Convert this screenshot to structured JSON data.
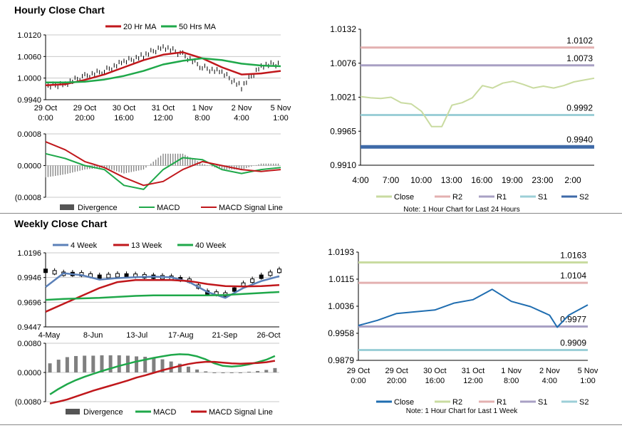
{
  "sections": {
    "hourly_title": "Hourly Close Chart",
    "weekly_title": "Weekly Close Chart"
  },
  "colors": {
    "ma_short": "#c0171b",
    "ma_long": "#1fa84a",
    "ma_4wk": "#5b80b8",
    "divergence": "#808080",
    "close_pivot": "#c9dba0",
    "r2": "#e3b0b0",
    "r1": "#a8a0c4",
    "s1": "#9ccfd7",
    "s2": "#3e6aa8",
    "close_weekly_pivot": "#1f6db0",
    "grid": "#c8c8c8"
  },
  "chart_data": [
    {
      "id": "hourly_price",
      "type": "line",
      "title": "",
      "legend": [
        "20 Hr MA",
        "50 Hrs MA"
      ],
      "y_ticks": [
        "1.0120",
        "1.0060",
        "1.0000",
        "0.9940"
      ],
      "ylim": [
        0.994,
        1.012
      ],
      "x_tick_labels": [
        [
          "29 Oct",
          "0:00"
        ],
        [
          "29 Oct",
          "20:00"
        ],
        [
          "30 Oct",
          "16:00"
        ],
        [
          "31 Oct",
          "12:00"
        ],
        [
          "1 Nov",
          "8:00"
        ],
        [
          "2 Nov",
          "4:00"
        ],
        [
          "5 Nov",
          "1:00"
        ]
      ],
      "x": [
        0,
        0.5,
        1,
        1.5,
        2,
        2.5,
        3,
        3.5,
        4,
        4.5,
        5,
        5.5,
        6
      ],
      "series": [
        {
          "name": "Price",
          "values": [
            0.9975,
            0.9985,
            1.0005,
            1.002,
            1.0045,
            1.0062,
            1.0088,
            1.0065,
            1.003,
            1.0015,
            0.9975,
            1.0035,
            1.004
          ]
        },
        {
          "name": "20 Hr MA",
          "values": [
            0.998,
            0.9983,
            0.9995,
            1.001,
            1.003,
            1.005,
            1.0065,
            1.0072,
            1.0055,
            1.003,
            1.001,
            1.0013,
            1.002
          ]
        },
        {
          "name": "50 Hrs MA",
          "values": [
            0.9988,
            0.9988,
            0.999,
            0.9996,
            1.0006,
            1.002,
            1.0038,
            1.0048,
            1.0055,
            1.005,
            1.004,
            1.0035,
            1.0033
          ]
        }
      ]
    },
    {
      "id": "hourly_macd",
      "type": "line",
      "legend": [
        "Divergence",
        "MACD",
        "MACD Signal Line"
      ],
      "y_ticks": [
        "0.0008",
        "0.0000",
        "(0.0008"
      ],
      "ylim": [
        -0.0008,
        0.0008
      ],
      "x": [
        0,
        0.5,
        1,
        1.5,
        2,
        2.5,
        3,
        3.5,
        4,
        4.5,
        5,
        5.5,
        6
      ],
      "series": [
        {
          "name": "MACD",
          "values": [
            0.0003,
            0.00018,
            0.0,
            -0.0001,
            -0.0005,
            -0.0006,
            -0.0001,
            0.0002,
            0.00015,
            -0.0001,
            -0.0002,
            -0.0001,
            -5e-05
          ]
        },
        {
          "name": "MACD Signal Line",
          "values": [
            0.0006,
            0.0004,
            0.0001,
            -5e-05,
            -0.0003,
            -0.0005,
            -0.0004,
            -0.0001,
            0.0001,
            0.0,
            -0.0001,
            -0.00015,
            -0.0001
          ]
        },
        {
          "name": "Divergence",
          "values": [
            -0.0003,
            -0.00022,
            -0.0001,
            -5e-05,
            -0.0002,
            -0.0001,
            0.0003,
            0.0003,
            5e-05,
            -0.0001,
            -0.0001,
            5e-05,
            5e-05
          ]
        }
      ]
    },
    {
      "id": "hourly_pivot",
      "type": "line",
      "legend": [
        "Close",
        "R2",
        "R1",
        "S1",
        "S2"
      ],
      "note": "Note: 1 Hour Chart for Last 24 Hours",
      "y_ticks": [
        "1.0132",
        "1.0076",
        "1.0021",
        "0.9965",
        "0.9910"
      ],
      "ylim": [
        0.991,
        1.0132
      ],
      "x_tick_labels": [
        "4:00",
        "7:00",
        "10:00",
        "13:00",
        "16:00",
        "19:00",
        "23:00",
        "2:00"
      ],
      "levels": [
        {
          "name": "R2",
          "value": 1.0102,
          "label": "1.0102"
        },
        {
          "name": "R1",
          "value": 1.0073,
          "label": "1.0073"
        },
        {
          "name": "S1",
          "value": 0.9992,
          "label": "0.9992"
        },
        {
          "name": "S2",
          "value": 0.994,
          "label": "0.9940"
        }
      ],
      "x": [
        0,
        1,
        2,
        3,
        4,
        5,
        6,
        7,
        8,
        9,
        10,
        11,
        12,
        13,
        14,
        15,
        16,
        17,
        18,
        19,
        20,
        21,
        22,
        23
      ],
      "series": [
        {
          "name": "Close",
          "values": [
            1.0022,
            1.002,
            1.0019,
            1.0021,
            1.0012,
            1.001,
            0.9998,
            0.9973,
            0.9973,
            1.0008,
            1.0012,
            1.002,
            1.004,
            1.0036,
            1.0044,
            1.0047,
            1.0042,
            1.0036,
            1.0039,
            1.0036,
            1.004,
            1.0046,
            1.0049,
            1.0052
          ]
        }
      ]
    },
    {
      "id": "weekly_price",
      "type": "line",
      "legend": [
        "4 Week",
        "13 Week",
        "40 Week"
      ],
      "y_ticks": [
        "1.0196",
        "0.9946",
        "0.9696",
        "0.9447"
      ],
      "ylim": [
        0.9447,
        1.0196
      ],
      "x_tick_labels": [
        "4-May",
        "8-Jun",
        "13-Jul",
        "17-Aug",
        "21-Sep",
        "26-Oct"
      ],
      "x": [
        0,
        2,
        4,
        6,
        8,
        10,
        12,
        14,
        16,
        18,
        20,
        22,
        24,
        26
      ],
      "series": [
        {
          "name": "Price",
          "values": [
            1.002,
            0.999,
            0.9985,
            0.996,
            0.9975,
            0.997,
            0.996,
            0.995,
            0.992,
            0.98,
            0.978,
            0.988,
            0.996,
            1.002
          ]
        },
        {
          "name": "4 Week",
          "values": [
            0.985,
            0.999,
            0.997,
            0.9925,
            0.994,
            0.995,
            0.9955,
            0.9948,
            0.99,
            0.98,
            0.974,
            0.984,
            0.991,
            0.996
          ]
        },
        {
          "name": "13 Week",
          "values": [
            0.96,
            0.968,
            0.976,
            0.984,
            0.99,
            0.992,
            0.992,
            0.992,
            0.991,
            0.988,
            0.986,
            0.9855,
            0.986,
            0.987
          ]
        },
        {
          "name": "40 Week",
          "values": [
            0.972,
            0.973,
            0.9735,
            0.974,
            0.975,
            0.976,
            0.9765,
            0.9765,
            0.9765,
            0.9765,
            0.977,
            0.978,
            0.979,
            0.98
          ]
        }
      ]
    },
    {
      "id": "weekly_macd",
      "type": "bar",
      "legend": [
        "Divergence",
        "MACD",
        "MACD Signal Line"
      ],
      "y_ticks": [
        "0.0080",
        "0.0000",
        "(0.0080"
      ],
      "ylim": [
        -0.008,
        0.008
      ],
      "x": [
        0,
        1,
        2,
        3,
        4,
        5,
        6,
        7,
        8,
        9,
        10,
        11,
        12,
        13,
        14,
        15,
        16,
        17,
        18,
        19,
        20,
        21,
        22,
        23,
        24,
        25,
        26
      ],
      "series": [
        {
          "name": "Divergence",
          "values": [
            0.0025,
            0.0035,
            0.0042,
            0.0045,
            0.0046,
            0.0046,
            0.0047,
            0.0047,
            0.0047,
            0.0046,
            0.0044,
            0.0043,
            0.004,
            0.0036,
            0.003,
            0.0024,
            0.0016,
            0.0008,
            0.0003,
            -0.0002,
            -0.0002,
            -0.0001,
            0.0,
            0.0002,
            0.0004,
            0.0007,
            0.0012
          ]
        },
        {
          "name": "MACD",
          "values": [
            -0.006,
            -0.0045,
            -0.0032,
            -0.0021,
            -0.0012,
            -0.0004,
            0.0004,
            0.0011,
            0.0018,
            0.0024,
            0.003,
            0.0035,
            0.004,
            0.0044,
            0.0048,
            0.005,
            0.0049,
            0.0044,
            0.0036,
            0.0025,
            0.0018,
            0.0016,
            0.0018,
            0.0022,
            0.0028,
            0.0035,
            0.0045
          ]
        },
        {
          "name": "MACD Signal Line",
          "values": [
            -0.0085,
            -0.008,
            -0.0074,
            -0.0066,
            -0.0058,
            -0.005,
            -0.0043,
            -0.0036,
            -0.0029,
            -0.0022,
            -0.0014,
            -0.0008,
            -0.0001,
            0.0006,
            0.0012,
            0.0018,
            0.0023,
            0.0027,
            0.0029,
            0.0029,
            0.0027,
            0.0025,
            0.0024,
            0.0025,
            0.0026,
            0.0028,
            0.0032
          ]
        }
      ]
    },
    {
      "id": "weekly_pivot",
      "type": "line",
      "legend": [
        "Close",
        "R2",
        "R1",
        "S1",
        "S2"
      ],
      "note": "Note: 1 Hour Chart for Last 1 Week",
      "y_ticks": [
        "1.0193",
        "1.0115",
        "1.0036",
        "0.9958",
        "0.9879"
      ],
      "ylim": [
        0.9879,
        1.0193
      ],
      "x_tick_labels": [
        [
          "29 Oct",
          "0:00"
        ],
        [
          "29 Oct",
          "20:00"
        ],
        [
          "30 Oct",
          "16:00"
        ],
        [
          "31 Oct",
          "12:00"
        ],
        [
          "1 Nov",
          "8:00"
        ],
        [
          "2 Nov",
          "4:00"
        ],
        [
          "5 Nov",
          "1:00"
        ]
      ],
      "levels": [
        {
          "name": "R2",
          "value": 1.0163,
          "label": "1.0163"
        },
        {
          "name": "R1",
          "value": 1.0104,
          "label": "1.0104"
        },
        {
          "name": "S1",
          "value": 0.9977,
          "label": "0.9977"
        },
        {
          "name": "S2",
          "value": 0.9909,
          "label": "0.9909"
        }
      ],
      "x": [
        0,
        0.5,
        1,
        1.5,
        2,
        2.5,
        3,
        3.5,
        4,
        4.5,
        5,
        5.2,
        5.5,
        6
      ],
      "series": [
        {
          "name": "Close",
          "values": [
            0.998,
            0.9995,
            1.0015,
            1.002,
            1.0025,
            1.0045,
            1.0055,
            1.0085,
            1.005,
            1.0035,
            1.001,
            0.9975,
            1.001,
            1.004
          ]
        }
      ]
    }
  ]
}
